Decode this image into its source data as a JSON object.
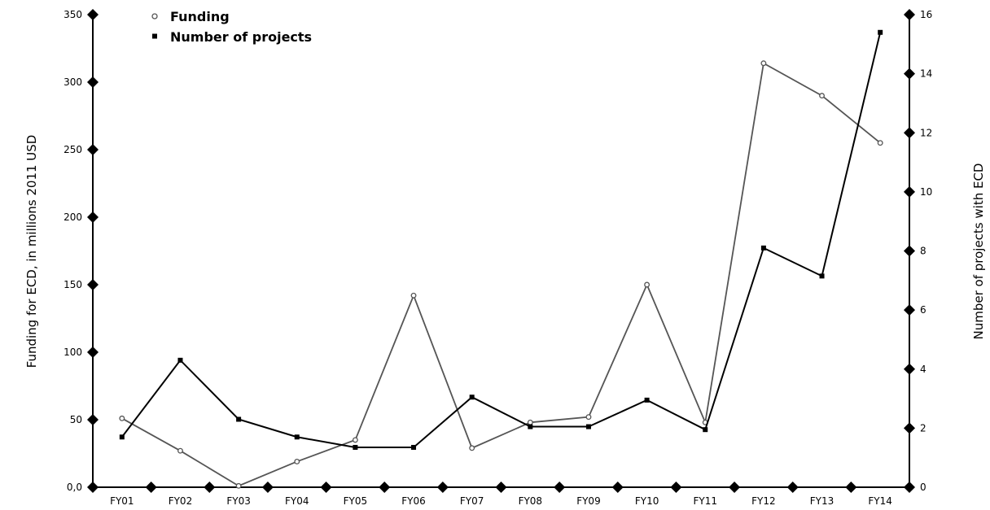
{
  "chart_data": {
    "type": "line",
    "categories": [
      "FY01",
      "FY02",
      "FY03",
      "FY04",
      "FY05",
      "FY06",
      "FY07",
      "FY08",
      "FY09",
      "FY10",
      "FY11",
      "FY12",
      "FY13",
      "FY14"
    ],
    "series": [
      {
        "name": "Funding",
        "axis": "left",
        "color": "#555555",
        "marker": "open-circle",
        "values": [
          51,
          27,
          1,
          19,
          35,
          142,
          29,
          48,
          52,
          150,
          48,
          314,
          290,
          255
        ]
      },
      {
        "name": "Number of projects",
        "axis": "right",
        "color": "#000000",
        "marker": "filled-square",
        "values": [
          1.7,
          4.3,
          2.3,
          1.7,
          1.35,
          1.35,
          3.05,
          2.05,
          2.05,
          2.95,
          1.95,
          8.1,
          7.15,
          15.4
        ]
      }
    ],
    "ylabel": "Funding for ECD, in millions 2011 USD",
    "y2label": "Number of projects with ECD",
    "ylim": [
      0,
      350
    ],
    "y2lim": [
      0,
      16
    ],
    "yticks": [
      "0,0",
      "50",
      "100",
      "150",
      "200",
      "250",
      "300",
      "350"
    ],
    "y2ticks": [
      "0",
      "2",
      "4",
      "6",
      "8",
      "10",
      "12",
      "14",
      "16"
    ],
    "grid": false,
    "legend": "top-left"
  }
}
